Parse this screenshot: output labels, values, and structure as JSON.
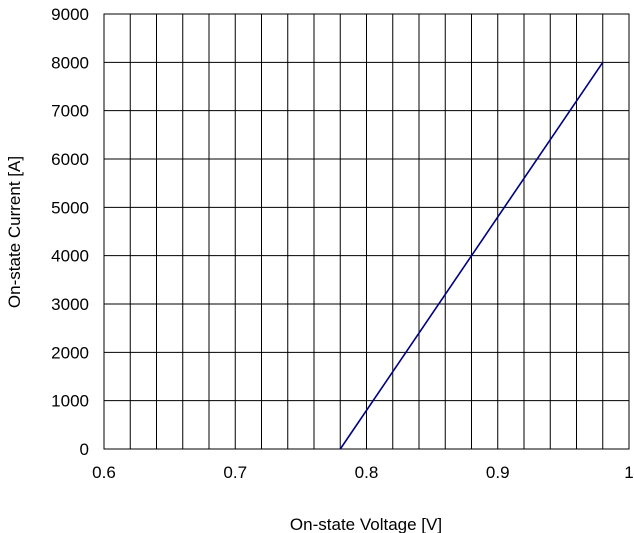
{
  "chart_data": {
    "type": "line",
    "title": "",
    "xlabel": "On-state Voltage [V]",
    "ylabel": "On-state Current [A]",
    "xlim": [
      0.6,
      1.0
    ],
    "ylim": [
      0,
      9000
    ],
    "x_ticks": [
      0.6,
      0.7,
      0.8,
      0.9,
      1.0
    ],
    "x_tick_labels": [
      "0.6",
      "0.7",
      "0.8",
      "0.9",
      "1"
    ],
    "y_ticks": [
      0,
      1000,
      2000,
      3000,
      4000,
      5000,
      6000,
      7000,
      8000,
      9000
    ],
    "y_tick_labels": [
      "0",
      "1000",
      "2000",
      "3000",
      "4000",
      "5000",
      "6000",
      "7000",
      "8000",
      "9000"
    ],
    "x_minor_step": 0.02,
    "grid": true,
    "legend": "none",
    "series": [
      {
        "x": [
          0.78,
          0.98
        ],
        "y": [
          0,
          8000
        ],
        "color": "#000080"
      }
    ]
  }
}
